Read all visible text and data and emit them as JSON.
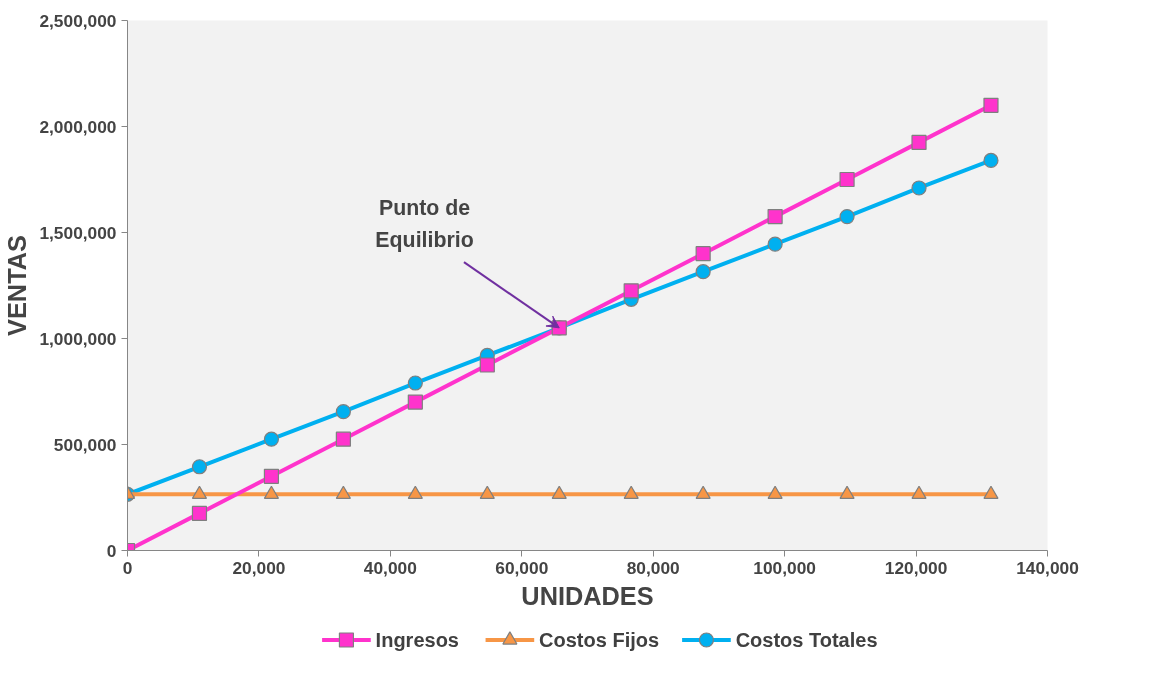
{
  "chart_data": {
    "type": "line",
    "xlabel": "UNIDADES",
    "ylabel": "VENTAS",
    "x": [
      0,
      10950,
      21900,
      32850,
      43800,
      54750,
      65700,
      76650,
      87600,
      98550,
      109500,
      120450,
      131400
    ],
    "series": [
      {
        "name": "Ingresos",
        "color": "#ff33cc",
        "marker": "square",
        "values": [
          0,
          175000,
          350000,
          525000,
          700000,
          875000,
          1050000,
          1225000,
          1400000,
          1575000,
          1750000,
          1925000,
          2100000
        ]
      },
      {
        "name": "Costos Fijos",
        "color": "#f79646",
        "marker": "triangle",
        "values": [
          265000,
          265000,
          265000,
          265000,
          265000,
          265000,
          265000,
          265000,
          265000,
          265000,
          265000,
          265000,
          265000
        ]
      },
      {
        "name": "Costos Totales",
        "color": "#00b0f0",
        "marker": "circle",
        "values": [
          265000,
          395000,
          525000,
          655000,
          790000,
          920000,
          1050000,
          1185000,
          1315000,
          1445000,
          1575000,
          1710000,
          1840000
        ]
      }
    ],
    "xlim": [
      0,
      140000
    ],
    "xticks": [
      {
        "value": 0,
        "label": "0"
      },
      {
        "value": 20000,
        "label": "20,000"
      },
      {
        "value": 40000,
        "label": "40,000"
      },
      {
        "value": 60000,
        "label": "60,000"
      },
      {
        "value": 80000,
        "label": "80,000"
      },
      {
        "value": 100000,
        "label": "100,000"
      },
      {
        "value": 120000,
        "label": "120,000"
      },
      {
        "value": 140000,
        "label": "140,000"
      }
    ],
    "ylim": [
      0,
      2500000
    ],
    "yticks": [
      {
        "value": 0,
        "label": "0"
      },
      {
        "value": 500000,
        "label": "500,000"
      },
      {
        "value": 1000000,
        "label": "1,000,000"
      },
      {
        "value": 1500000,
        "label": "1,500,000"
      },
      {
        "value": 2000000,
        "label": "2,000,000"
      },
      {
        "value": 2500000,
        "label": "2,500,000"
      }
    ],
    "annotations": [
      {
        "text": "Punto de\nEquilibrio",
        "x": 65700,
        "y": 1050000
      }
    ],
    "legend": "bottom",
    "line_style": "solid"
  }
}
